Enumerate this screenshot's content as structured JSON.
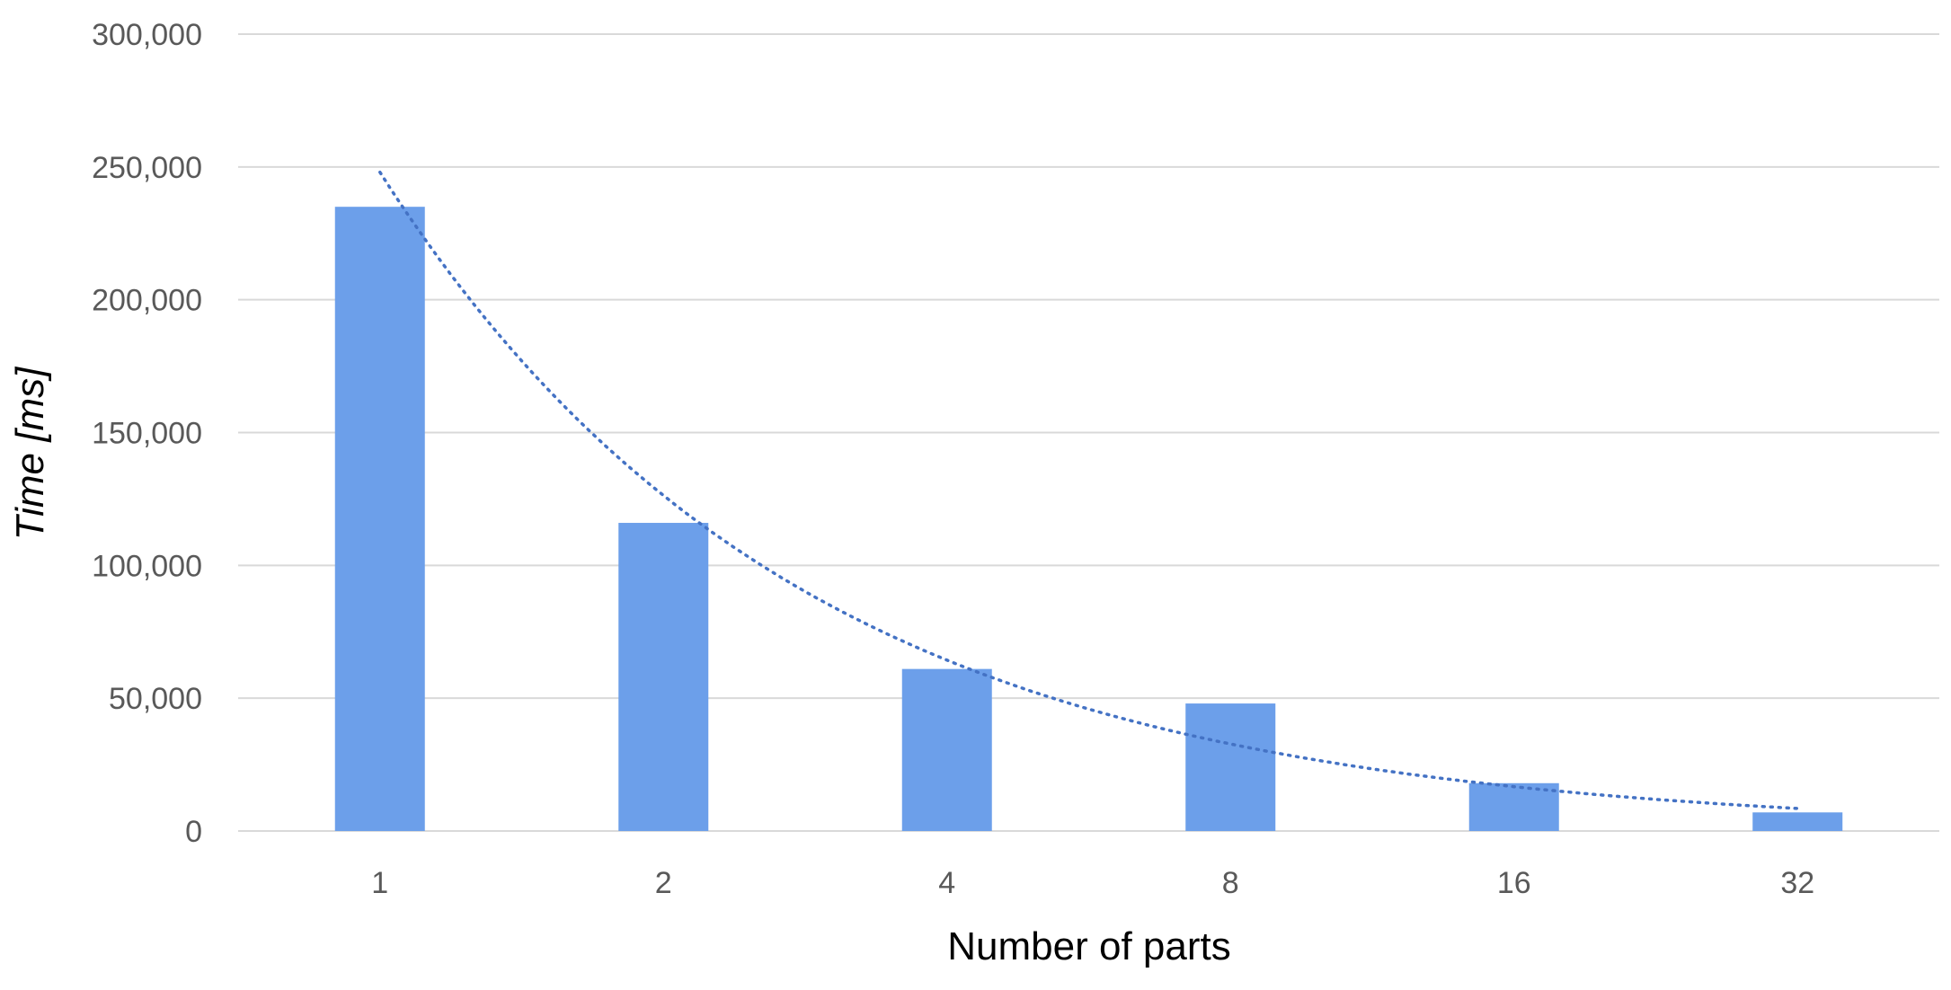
{
  "chart_data": {
    "type": "bar",
    "categories": [
      "1",
      "2",
      "4",
      "8",
      "16",
      "32"
    ],
    "values": [
      235000,
      116000,
      61000,
      48000,
      18000,
      7000
    ],
    "xlabel": "Number of parts",
    "ylabel": "Time [ms]",
    "ylim": [
      0,
      300000
    ],
    "yticks": [
      0,
      50000,
      100000,
      150000,
      200000,
      250000,
      300000
    ],
    "ytick_labels": [
      "0",
      "50,000",
      "100,000",
      "150,000",
      "200,000",
      "250,000",
      "300,000"
    ],
    "grid": true,
    "legend": "none",
    "trendline": {
      "type": "exponential",
      "style": "dotted",
      "start_value": 248000,
      "end_value": 8500
    },
    "colors": {
      "bar": "#6c9fea",
      "trendline": "#4472c4",
      "grid": "#d9d9d9",
      "tick_text": "#595959",
      "axis_title": "#000000"
    }
  }
}
